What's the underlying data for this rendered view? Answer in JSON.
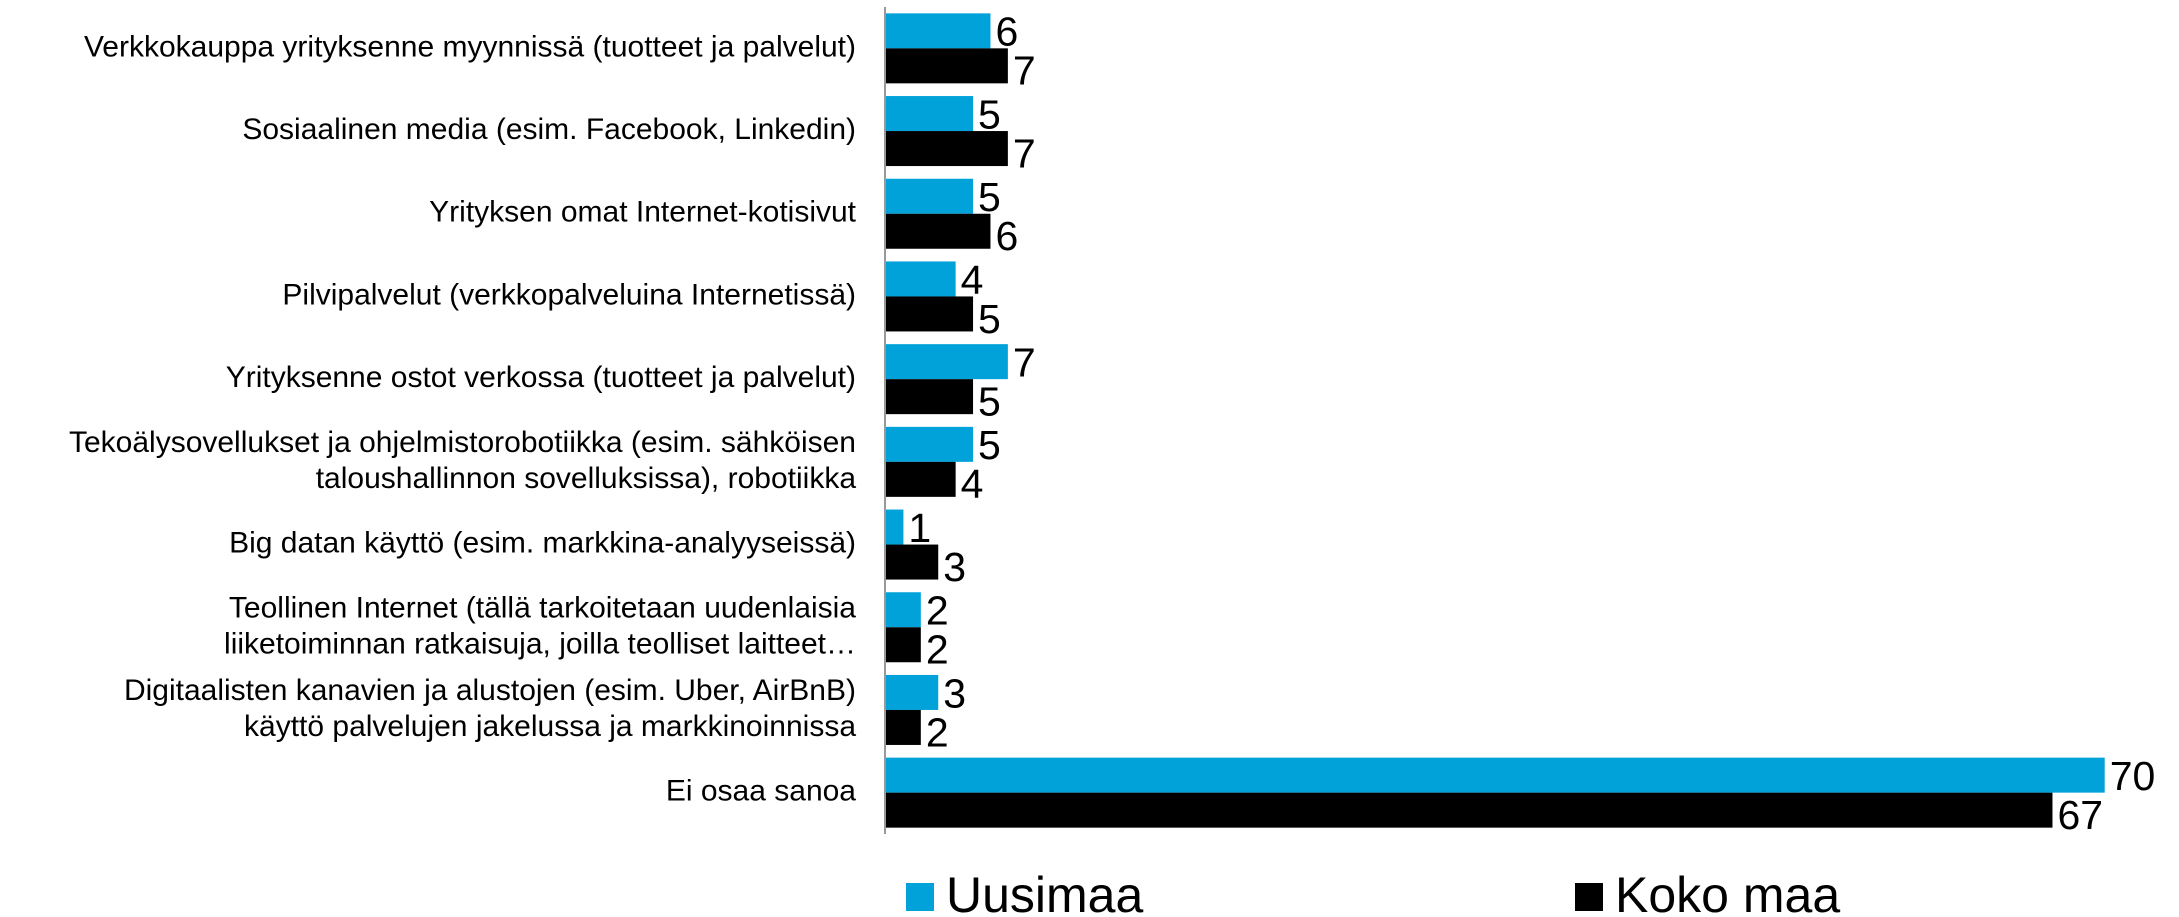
{
  "chart_data": {
    "type": "bar",
    "orientation": "horizontal",
    "categories": [
      "Verkkokauppa yrityksenne myynnissä (tuotteet ja palvelut)",
      "Sosiaalinen media (esim. Facebook, Linkedin)",
      "Yrityksen omat Internet-kotisivut",
      "Pilvipalvelut  (verkkopalveluina Internetissä)",
      "Yrityksenne ostot verkossa (tuotteet ja palvelut)",
      "Tekoälysovellukset ja ohjelmistorobotiikka (esim. sähköisen\ntaloushallinnon sovelluksissa), robotiikka",
      "Big datan käyttö (esim. markkina-analyyseissä)",
      "Teollinen Internet (tällä tarkoitetaan uudenlaisia\nliiketoiminnan ratkaisuja, joilla teolliset laitteet…",
      "Digitaalisten kanavien ja alustojen (esim. Uber, AirBnB)\nkäyttö palvelujen jakelussa ja markkinoinnissa",
      "Ei osaa sanoa"
    ],
    "series": [
      {
        "name": "Uusimaa",
        "color": "#00a2d9",
        "values": [
          6,
          5,
          5,
          4,
          7,
          5,
          1,
          2,
          3,
          70
        ]
      },
      {
        "name": "Koko maa",
        "color": "#000000",
        "values": [
          7,
          7,
          6,
          5,
          5,
          4,
          3,
          2,
          2,
          67
        ]
      }
    ],
    "legend": "bottom"
  }
}
